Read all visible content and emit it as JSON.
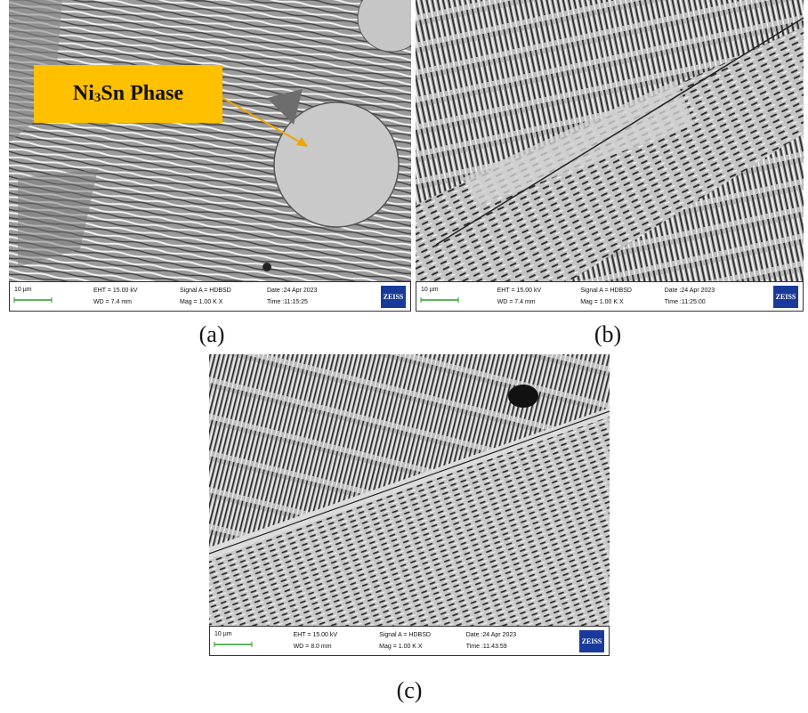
{
  "figure": {
    "panels": [
      {
        "caption": "(a)",
        "info": {
          "scale": "10 µm",
          "eht": "EHT = 15.00 kV",
          "wd": "WD = 7.4 mm",
          "signal": "Signal A = HDBSD",
          "mag": "Mag =   1.00 K X",
          "date": "Date :24 Apr 2023",
          "time": "Time :11:15:25",
          "logo": "ZEISS"
        },
        "annotation": {
          "prefix": "Ni",
          "subscript": "3",
          "suffix": "Sn Phase"
        }
      },
      {
        "caption": "(b)",
        "info": {
          "scale": "10 µm",
          "eht": "EHT = 15.00 kV",
          "wd": "WD = 7.4 mm",
          "signal": "Signal A = HDBSD",
          "mag": "Mag =   1.00 K X",
          "date": "Date :24 Apr 2023",
          "time": "Time :11:25:00",
          "logo": "ZEISS"
        }
      },
      {
        "caption": "(c)",
        "info": {
          "scale": "10 µm",
          "eht": "EHT = 15.00 kV",
          "wd": "WD = 8.0 mm",
          "signal": "Signal A = HDBSD",
          "mag": "Mag =   1.00 K X",
          "date": "Date :24 Apr 2023",
          "time": "Time :11:43:59",
          "logo": "ZEISS"
        }
      }
    ]
  }
}
